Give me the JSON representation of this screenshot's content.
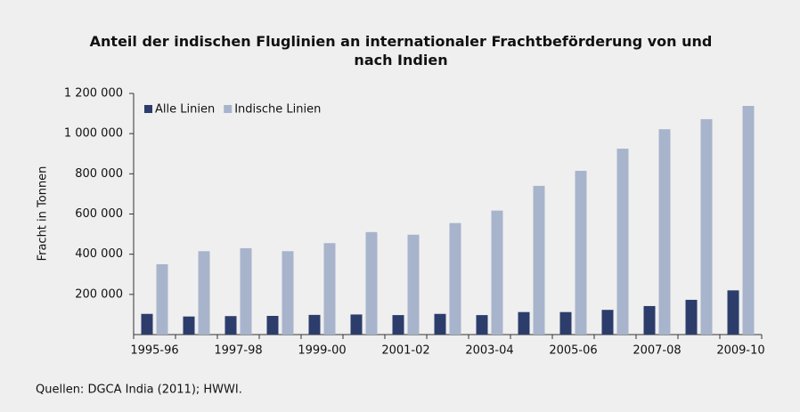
{
  "chart_data": {
    "type": "bar",
    "title": "Anteil der indischen Fluglinien an internationaler Frachtbeförderung von und nach Indien",
    "y_label": "Fracht in Tonnen",
    "source": "Quellen:  DGCA India (2011); HWWI.",
    "categories": [
      "1995-96",
      null,
      "1997-98",
      null,
      "1999-00",
      null,
      "2001-02",
      null,
      "2003-04",
      null,
      "2005-06",
      null,
      "2007-08",
      null,
      "2009-10"
    ],
    "series": [
      {
        "name": "Alle Linien",
        "color": "#2c3d6b",
        "values": [
          103000,
          90000,
          92000,
          93000,
          98000,
          100000,
          97000,
          103000,
          97000,
          112000,
          112000,
          123000,
          142000,
          173000,
          220000
        ]
      },
      {
        "name": "Indische Linien",
        "color": "#a8b4cc",
        "values": [
          350000,
          415000,
          430000,
          415000,
          455000,
          510000,
          497000,
          555000,
          617000,
          740000,
          815000,
          925000,
          1022000,
          1072000,
          1138000
        ]
      }
    ],
    "ylim": [
      0,
      1200000
    ],
    "yticks": [
      {
        "value": 200000,
        "label": "200 000"
      },
      {
        "value": 400000,
        "label": "400 000"
      },
      {
        "value": 600000,
        "label": "600 000"
      },
      {
        "value": 800000,
        "label": "800 000"
      },
      {
        "value": 1000000,
        "label": "1 000 000"
      },
      {
        "value": 1200000,
        "label": "1 200 000"
      }
    ],
    "legend": "top-left",
    "grid": false
  }
}
